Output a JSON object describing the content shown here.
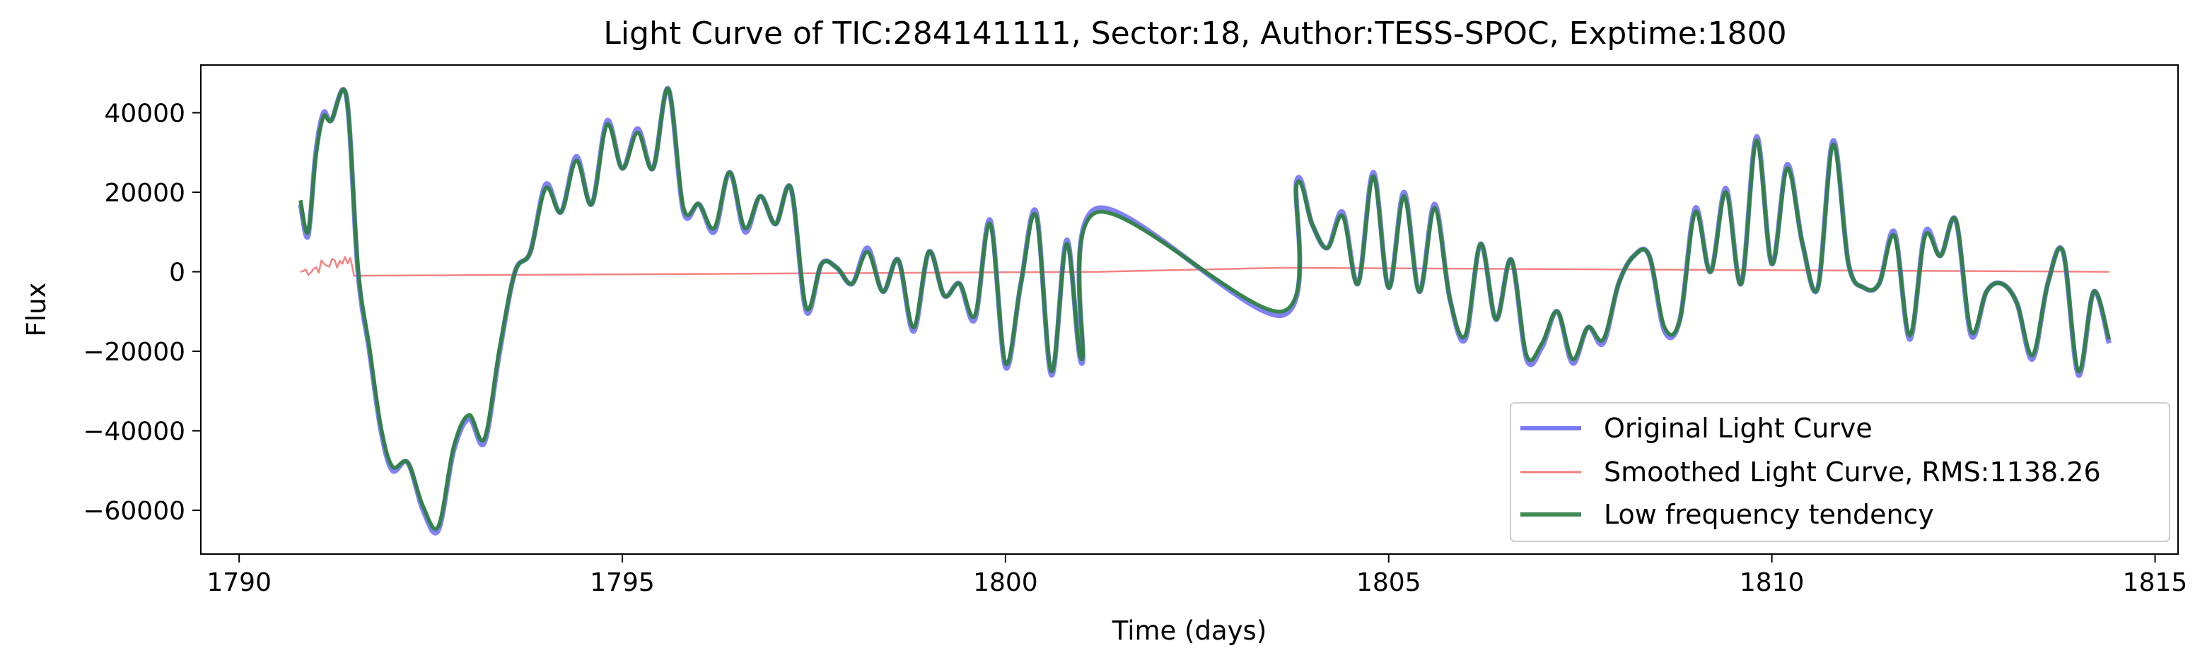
{
  "chart_data": {
    "type": "line",
    "title": "Light Curve of TIC:284141111, Sector:18, Author:TESS-SPOC, Exptime:1800",
    "xlabel": "Time (days)",
    "ylabel": "Flux",
    "xlim": [
      1789.5,
      1815.3
    ],
    "ylim": [
      -71000,
      52000
    ],
    "xticks": [
      1790,
      1795,
      1800,
      1805,
      1810,
      1815
    ],
    "xtick_labels": [
      "1790",
      "1795",
      "1800",
      "1805",
      "1810",
      "1815"
    ],
    "yticks": [
      -60000,
      -40000,
      -20000,
      0,
      20000,
      40000
    ],
    "ytick_labels": [
      "−60000",
      "−40000",
      "−20000",
      "0",
      "20000",
      "40000"
    ],
    "grid": false,
    "legend_position": "lower-right",
    "legend": [
      "Original Light Curve",
      "Smoothed Light Curve, RMS:1138.26",
      "Low frequency tendency"
    ],
    "colors": {
      "original": "#6b6bf2",
      "smoothed": "#f27c7c",
      "tendency": "#2e7f45"
    },
    "series": [
      {
        "name": "Original Light Curve",
        "color": "#6b6bf2",
        "x": [
          1790.8,
          1790.9,
          1791.0,
          1791.1,
          1791.2,
          1791.4,
          1791.55,
          1791.7,
          1791.85,
          1792.0,
          1792.2,
          1792.4,
          1792.6,
          1792.8,
          1793.0,
          1793.2,
          1793.4,
          1793.6,
          1793.8,
          1794.0,
          1794.2,
          1794.4,
          1794.6,
          1794.8,
          1795.0,
          1795.2,
          1795.4,
          1795.6,
          1795.8,
          1796.0,
          1796.2,
          1796.4,
          1796.6,
          1796.8,
          1797.0,
          1797.2,
          1797.4,
          1797.6,
          1797.8,
          1798.0,
          1798.2,
          1798.4,
          1798.6,
          1798.8,
          1799.0,
          1799.2,
          1799.4,
          1799.6,
          1799.8,
          1800.0,
          1800.2,
          1800.4,
          1800.6,
          1800.8,
          1801.0,
          1801.2,
          1803.6,
          1803.8,
          1804.0,
          1804.2,
          1804.4,
          1804.6,
          1804.8,
          1805.0,
          1805.2,
          1805.4,
          1805.6,
          1805.8,
          1806.0,
          1806.2,
          1806.4,
          1806.6,
          1806.8,
          1807.0,
          1807.2,
          1807.4,
          1807.6,
          1807.8,
          1808.0,
          1808.2,
          1808.4,
          1808.6,
          1808.8,
          1809.0,
          1809.2,
          1809.4,
          1809.6,
          1809.8,
          1810.0,
          1810.2,
          1810.4,
          1810.6,
          1810.8,
          1811.0,
          1811.2,
          1811.4,
          1811.6,
          1811.8,
          1812.0,
          1812.2,
          1812.4,
          1812.6,
          1812.8,
          1813.0,
          1813.2,
          1813.4,
          1813.6,
          1813.8,
          1814.0,
          1814.2,
          1814.4
        ],
        "y": [
          17000,
          9000,
          30000,
          40000,
          38000,
          44000,
          0,
          -20000,
          -40000,
          -50000,
          -48000,
          -60000,
          -65000,
          -45000,
          -37000,
          -43000,
          -20000,
          0,
          5000,
          22000,
          15000,
          29000,
          17000,
          38000,
          26000,
          36000,
          26000,
          46000,
          15000,
          17000,
          10000,
          25000,
          10000,
          19000,
          12000,
          21000,
          -10000,
          2000,
          1000,
          -3000,
          6000,
          -5000,
          3000,
          -15000,
          5000,
          -6000,
          -3000,
          -12000,
          13000,
          -24000,
          -3000,
          15000,
          -26000,
          8000,
          -23000,
          16000,
          -11000,
          23000,
          12000,
          6000,
          15000,
          -3000,
          25000,
          -4000,
          20000,
          -5000,
          17000,
          -7000,
          -17000,
          7000,
          -12000,
          3000,
          -22000,
          -19000,
          -10000,
          -23000,
          -14000,
          -18000,
          -3000,
          4000,
          4000,
          -15000,
          -12000,
          16000,
          0,
          21000,
          -3000,
          34000,
          2000,
          27000,
          7000,
          -4000,
          33000,
          2000,
          -4000,
          -3000,
          10000,
          -17000,
          10000,
          4000,
          13000,
          -16000,
          -5000,
          -3000,
          -8000,
          -22000,
          -3000,
          5000,
          -26000,
          -5000,
          -18000
        ]
      },
      {
        "name": "Smoothed Light Curve, RMS:1138.26",
        "color": "#f27c7c",
        "x": [
          1790.8,
          1791.45,
          1791.5,
          1801.2,
          1803.6,
          1814.4
        ],
        "y": [
          0,
          3500,
          -1000,
          0,
          1000,
          0
        ],
        "noise_amplitude": 1800
      },
      {
        "name": "Low frequency tendency",
        "color": "#2e7f45",
        "x": [
          1790.8,
          1790.9,
          1791.0,
          1791.1,
          1791.2,
          1791.4,
          1791.55,
          1791.7,
          1791.85,
          1792.0,
          1792.2,
          1792.4,
          1792.6,
          1792.8,
          1793.0,
          1793.2,
          1793.4,
          1793.6,
          1793.8,
          1794.0,
          1794.2,
          1794.4,
          1794.6,
          1794.8,
          1795.0,
          1795.2,
          1795.4,
          1795.6,
          1795.8,
          1796.0,
          1796.2,
          1796.4,
          1796.6,
          1796.8,
          1797.0,
          1797.2,
          1797.4,
          1797.6,
          1797.8,
          1798.0,
          1798.2,
          1798.4,
          1798.6,
          1798.8,
          1799.0,
          1799.2,
          1799.4,
          1799.6,
          1799.8,
          1800.0,
          1800.2,
          1800.4,
          1800.6,
          1800.8,
          1801.0,
          1801.2,
          1803.6,
          1803.8,
          1804.0,
          1804.2,
          1804.4,
          1804.6,
          1804.8,
          1805.0,
          1805.2,
          1805.4,
          1805.6,
          1805.8,
          1806.0,
          1806.2,
          1806.4,
          1806.6,
          1806.8,
          1807.0,
          1807.2,
          1807.4,
          1807.6,
          1807.8,
          1808.0,
          1808.2,
          1808.4,
          1808.6,
          1808.8,
          1809.0,
          1809.2,
          1809.4,
          1809.6,
          1809.8,
          1810.0,
          1810.2,
          1810.4,
          1810.6,
          1810.8,
          1811.0,
          1811.2,
          1811.4,
          1811.6,
          1811.8,
          1812.0,
          1812.2,
          1812.4,
          1812.6,
          1812.8,
          1813.0,
          1813.2,
          1813.4,
          1813.6,
          1813.8,
          1814.0,
          1814.2,
          1814.4
        ],
        "y": [
          18000,
          10000,
          29000,
          39000,
          38000,
          44000,
          1000,
          -19000,
          -39000,
          -49000,
          -48000,
          -59000,
          -64000,
          -44000,
          -36000,
          -42000,
          -19000,
          0,
          5000,
          21000,
          15000,
          28000,
          17000,
          37000,
          26000,
          35000,
          26000,
          46000,
          16000,
          17000,
          11000,
          25000,
          11000,
          19000,
          12000,
          21000,
          -9000,
          2000,
          1000,
          -3000,
          5000,
          -5000,
          3000,
          -14000,
          5000,
          -6000,
          -3000,
          -11000,
          12000,
          -23000,
          -3000,
          14000,
          -25000,
          7000,
          -22000,
          15000,
          -10000,
          22000,
          12000,
          6000,
          14000,
          -3000,
          24000,
          -4000,
          19000,
          -5000,
          16000,
          -7000,
          -16000,
          7000,
          -12000,
          3000,
          -21000,
          -18000,
          -10000,
          -22000,
          -14000,
          -17000,
          -3000,
          4000,
          4000,
          -14000,
          -12000,
          15000,
          0,
          20000,
          -3000,
          33000,
          2000,
          26000,
          7000,
          -4000,
          32000,
          2000,
          -4000,
          -3000,
          9000,
          -16000,
          9000,
          4000,
          13000,
          -15000,
          -5000,
          -3000,
          -8000,
          -21000,
          -3000,
          5000,
          -25000,
          -5000,
          -17000
        ]
      }
    ]
  }
}
